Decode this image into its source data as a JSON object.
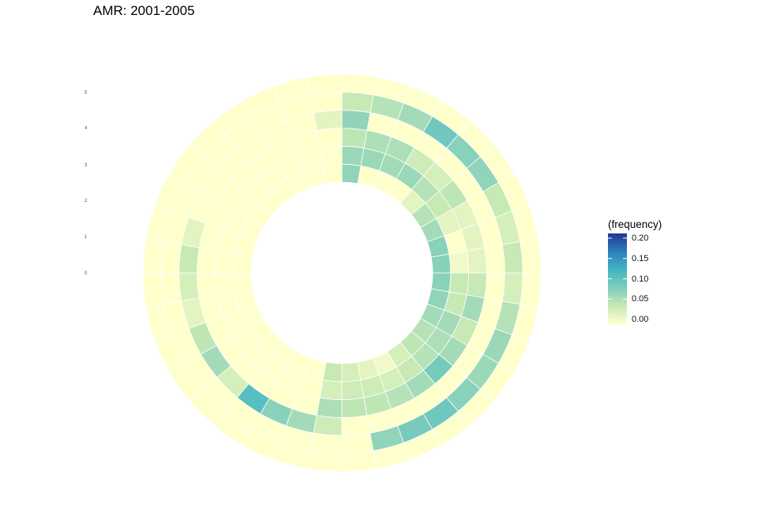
{
  "chart_data": {
    "type": "heatmap",
    "title": "AMR: 2001-2005",
    "legend": {
      "title": "(frequency)",
      "ticks": [
        "0.20",
        "0.15",
        "0.10",
        "0.05",
        "0.00"
      ],
      "tick_values": [
        0.2,
        0.15,
        0.1,
        0.05,
        0.0
      ],
      "range": [
        0,
        0.2
      ],
      "colors": [
        "#ffffcc",
        "#c7e9b4",
        "#7fcdbb",
        "#41b6c4",
        "#2c7fb8",
        "#253494"
      ],
      "placement": "right"
    },
    "radial_labels": [
      "0",
      "1",
      "2",
      "3",
      "4",
      "5"
    ],
    "sectors_per_ring": 36,
    "rings": [
      {
        "label": "0",
        "values": [
          0,
          0,
          0,
          0,
          0,
          0,
          0,
          0,
          0.04,
          0.03,
          0.02,
          0.01,
          0.03,
          0.045,
          0.05,
          0.06,
          0.07,
          0.075,
          0.075,
          0.075,
          0.06,
          0.05,
          0.02,
          0,
          0,
          0,
          0.07,
          0,
          0,
          0,
          0,
          0,
          0,
          0,
          0,
          0
        ]
      },
      {
        "label": "1",
        "values": [
          0,
          0,
          0,
          0,
          0,
          0,
          0,
          0,
          0.03,
          0.035,
          0.035,
          0.03,
          0.04,
          0.05,
          0.055,
          0.06,
          0.04,
          0.04,
          0.01,
          0,
          0.02,
          0.04,
          0.05,
          0.065,
          0.06,
          0.065,
          0.065,
          0,
          0,
          0,
          0,
          0,
          0,
          0,
          0,
          0
        ]
      },
      {
        "label": "2",
        "values": [
          0,
          0,
          0,
          0,
          0,
          0,
          0,
          0,
          0.055,
          0.045,
          0.045,
          0.05,
          0.06,
          0.085,
          0.06,
          0.04,
          0.06,
          0.04,
          0.02,
          0.02,
          0.02,
          0.045,
          0.03,
          0.035,
          0.055,
          0.055,
          0.045,
          0,
          0,
          0,
          0,
          0,
          0,
          0,
          0,
          0
        ]
      },
      {
        "label": "3",
        "values": [
          0.03,
          0.02,
          0.045,
          0.06,
          0.03,
          0.105,
          0.075,
          0.06,
          0.035,
          0,
          0,
          0,
          0,
          0,
          0,
          0,
          0,
          0,
          0,
          0,
          0,
          0,
          0,
          0,
          0,
          0,
          0.07,
          0.02,
          0,
          0,
          0,
          0,
          0,
          0,
          0.02,
          0.04
        ]
      },
      {
        "label": "4",
        "values": [
          0,
          0,
          0,
          0,
          0,
          0,
          0,
          0,
          0,
          0,
          0.07,
          0.085,
          0.09,
          0.075,
          0.065,
          0.065,
          0.05,
          0.03,
          0.04,
          0.03,
          0.04,
          0.07,
          0.075,
          0.09,
          0.06,
          0.05,
          0.04,
          0,
          0,
          0,
          0,
          0,
          0,
          0,
          0,
          0
        ]
      },
      {
        "label": "5",
        "values": [
          0,
          0,
          0,
          0,
          0,
          0,
          0,
          0,
          0,
          0,
          0,
          0,
          0,
          0,
          0,
          0,
          0,
          0,
          0,
          0,
          0,
          0,
          0,
          0,
          0,
          0,
          0,
          0,
          0,
          0,
          0,
          0,
          0,
          0,
          0,
          0
        ]
      }
    ]
  }
}
